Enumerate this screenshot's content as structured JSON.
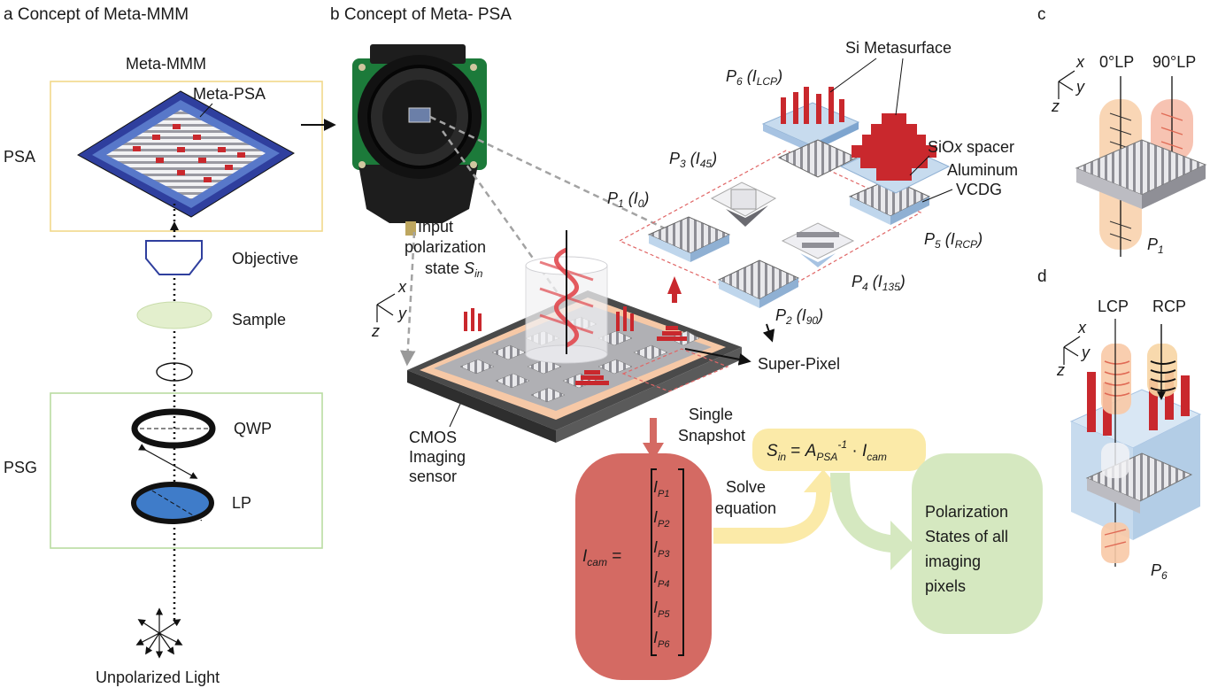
{
  "panels": {
    "a": {
      "letter": "a",
      "title": "Concept of Meta-MMM"
    },
    "b": {
      "letter": "b",
      "title": "Concept of Meta- PSA"
    },
    "c": {
      "letter": "c"
    },
    "d": {
      "letter": "d"
    }
  },
  "panel_a": {
    "meta_mmm": "Meta-MMM",
    "meta_psa": "Meta-PSA",
    "psa": "PSA",
    "psg": "PSG",
    "objective": "Objective",
    "sample": "Sample",
    "qwp": "QWP",
    "lp": "LP",
    "light": "Unpolarized Light"
  },
  "panel_b": {
    "input_line1": "Input",
    "input_line2": "polarization",
    "input_line3": "state",
    "s_in_base": "S",
    "s_in_sub": "in",
    "cmos_line1": "CMOS",
    "cmos_line2": "Imaging",
    "cmos_line3": "sensor",
    "super_pixel": "Super-Pixel",
    "snapshot_line1": "Single",
    "snapshot_line2": "Snapshot",
    "si_metasurface": "Si Metasurface",
    "sio_prefix": "SiO",
    "sio_x": "x",
    "sio_suffix": " spacer",
    "aluminum": "Aluminum",
    "vcdg": "VCDG",
    "pixels": [
      {
        "p": "P",
        "p_sub": "1",
        "i": "I",
        "i_sub": "0"
      },
      {
        "p": "P",
        "p_sub": "2",
        "i": "I",
        "i_sub": "90"
      },
      {
        "p": "P",
        "p_sub": "3",
        "i": "I",
        "i_sub": "45"
      },
      {
        "p": "P",
        "p_sub": "4",
        "i": "I",
        "i_sub": "135"
      },
      {
        "p": "P",
        "p_sub": "5",
        "i": "I",
        "i_sub": "RCP"
      },
      {
        "p": "P",
        "p_sub": "6",
        "i": "I",
        "i_sub": "LCP"
      }
    ],
    "axes": {
      "x": "x",
      "y": "y",
      "z": "z"
    }
  },
  "equation": {
    "icam_base": "I",
    "icam_sub": "cam",
    "equals": "=",
    "vector": [
      {
        "base": "I",
        "sub": "P1"
      },
      {
        "base": "I",
        "sub": "P2"
      },
      {
        "base": "I",
        "sub": "P3"
      },
      {
        "base": "I",
        "sub": "P4"
      },
      {
        "base": "I",
        "sub": "P5"
      },
      {
        "base": "I",
        "sub": "P6"
      }
    ],
    "solve_line1": "Solve",
    "solve_line2": "equation",
    "formula": {
      "s": "S",
      "s_sub": "in",
      "eq": " = ",
      "a": "A",
      "a_sub": "PSA",
      "a_sup": "-1",
      "dot": " · ",
      "i": "I",
      "i_sub": "cam"
    },
    "result_line1": "Polarization",
    "result_line2": "States of all",
    "result_line3": "imaging",
    "result_line4": "pixels"
  },
  "panel_c": {
    "lp0": "0°LP",
    "lp90": "90°LP",
    "pixel_base": "P",
    "pixel_sub": "1",
    "axes": {
      "x": "x",
      "y": "y",
      "z": "z"
    }
  },
  "panel_d": {
    "lcp": "LCP",
    "rcp": "RCP",
    "pixel_base": "P",
    "pixel_sub": "6",
    "axes": {
      "x": "x",
      "y": "y",
      "z": "z"
    }
  },
  "colors": {
    "metasurface_red": "#c9282d",
    "grating_grey": "#9a9aa0",
    "substrate_blue": "#c7dbee",
    "sensor_dark": "#3c3c3c",
    "sensor_peach": "#f6c8a6",
    "equation_red": "#d46a63",
    "equation_yellow": "#fbeaa8",
    "result_green": "#d5e8c0",
    "psa_box": "#f2d98a",
    "psg_box": "#b9dca1"
  }
}
